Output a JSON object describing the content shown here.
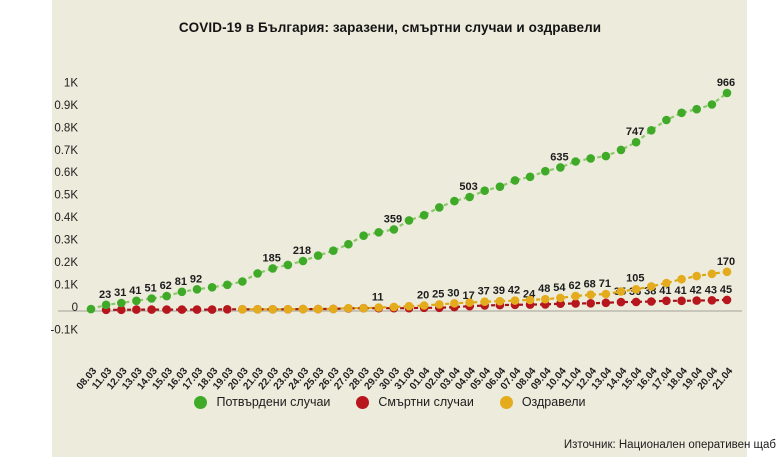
{
  "title": "COVID-19 в България: заразени, смъртни случаи и оздравели",
  "source": "Източник: Национален оперативен щаб",
  "colors": {
    "page_background": "#ffffff",
    "panel_background": "#ECEBDC",
    "confirmed": "#3FAA28",
    "confirmed_line": "#8CC96B",
    "deaths": "#B8161D",
    "deaths_line": "#A5131A",
    "recovered": "#E4AC1C",
    "recovered_line": "#DCA814",
    "axis_text": "#1e1e1e",
    "data_label": "#1c1c1c",
    "zero_line": "#BCBAB0"
  },
  "legend": {
    "items": [
      {
        "key": "confirmed",
        "label": "Потвърдени случаи",
        "color": "#3FAA28"
      },
      {
        "key": "deaths",
        "label": "Смъртни случаи",
        "color": "#B8161D"
      },
      {
        "key": "recovered",
        "label": "Оздравели",
        "color": "#E4AC1C"
      }
    ]
  },
  "y_axis": {
    "ticks": [
      {
        "label": "1K",
        "value": 1000
      },
      {
        "label": "0.9K",
        "value": 900
      },
      {
        "label": "0.8K",
        "value": 800
      },
      {
        "label": "0.7K",
        "value": 700
      },
      {
        "label": "0.6K",
        "value": 600
      },
      {
        "label": "0.5K",
        "value": 500
      },
      {
        "label": "0.4K",
        "value": 400
      },
      {
        "label": "0.3K",
        "value": 300
      },
      {
        "label": "0.2K",
        "value": 200
      },
      {
        "label": "0.1K",
        "value": 100
      },
      {
        "label": "0",
        "value": 0
      },
      {
        "label": "-0.1K",
        "value": -100
      }
    ]
  },
  "chart_data": {
    "type": "line",
    "title": "COVID-19 в България: заразени, смъртни случаи и оздравели",
    "xlabel": "",
    "ylabel": "",
    "ylim": [
      -100,
      1000
    ],
    "grid": false,
    "legend_position": "bottom",
    "categories": [
      "08.03",
      "11.03",
      "12.03",
      "13.03",
      "14.03",
      "15.03",
      "16.03",
      "17.03",
      "18.03",
      "19.03",
      "20.03",
      "21.03",
      "22.03",
      "23.03",
      "24.03",
      "25.03",
      "26.03",
      "27.03",
      "28.03",
      "29.03",
      "30.03",
      "31.03",
      "01.04",
      "02.04",
      "03.04",
      "04.04",
      "05.04",
      "06.04",
      "07.04",
      "08.04",
      "09.04",
      "10.04",
      "11.04",
      "12.04",
      "13.04",
      "14.04",
      "15.04",
      "16.04",
      "17.04",
      "18.04",
      "19.04",
      "20.04",
      "21.04"
    ],
    "series": [
      {
        "key": "confirmed",
        "name": "Потвърдени случаи",
        "color": "#3FAA28",
        "line_color": "#8CC96B",
        "values": [
          4,
          23,
          31,
          41,
          51,
          62,
          81,
          92,
          101,
          112,
          127,
          163,
          185,
          201,
          218,
          242,
          264,
          293,
          331,
          346,
          359,
          399,
          422,
          457,
          485,
          503,
          531,
          549,
          577,
          593,
          618,
          635,
          661,
          675,
          685,
          713,
          747,
          800,
          846,
          878,
          894,
          915,
          966
        ],
        "labeled_indices": [
          1,
          2,
          3,
          4,
          5,
          6,
          7,
          12,
          14,
          20,
          25,
          31,
          36,
          42
        ]
      },
      {
        "key": "deaths",
        "name": "Смъртни случаи",
        "color": "#B8161D",
        "line_color": "#A5131A",
        "values": [
          null,
          1,
          1,
          2,
          2,
          2,
          2,
          2,
          2,
          3,
          3,
          3,
          3,
          3,
          4,
          4,
          5,
          7,
          8,
          8,
          8,
          8,
          10,
          10,
          13,
          17,
          20,
          22,
          23,
          24,
          25,
          28,
          29,
          30,
          32,
          35,
          36,
          38,
          41,
          41,
          42,
          43,
          45
        ],
        "labeled_indices": [
          25,
          29,
          35,
          36,
          37,
          38,
          39,
          40,
          41,
          42
        ]
      },
      {
        "key": "recovered",
        "name": "Оздравели",
        "color": "#E4AC1C",
        "line_color": "#DCA814",
        "values": [
          null,
          null,
          null,
          null,
          null,
          null,
          null,
          null,
          null,
          null,
          3,
          3,
          3,
          3,
          4,
          4,
          5,
          8,
          8,
          11,
          14,
          17,
          20,
          25,
          30,
          33,
          37,
          39,
          42,
          45,
          48,
          54,
          62,
          68,
          71,
          83,
          92,
          105,
          120,
          137,
          151,
          161,
          170
        ],
        "labeled_indices": [
          19,
          22,
          23,
          24,
          26,
          27,
          28,
          30,
          31,
          32,
          33,
          34,
          37,
          42
        ]
      }
    ]
  }
}
